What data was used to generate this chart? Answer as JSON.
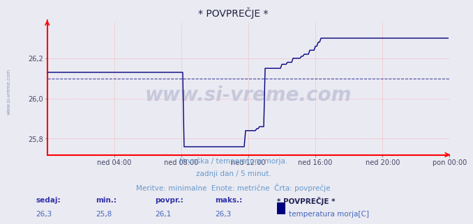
{
  "title": "* POVPREČJE *",
  "background_color": "#eaeaf2",
  "plot_bg_color": "#eaeaf2",
  "grid_color": "#ff9999",
  "line_color": "#00007f",
  "dashed_line_color": "#00007f",
  "axis_color": "#ff0000",
  "ylim": [
    25.72,
    26.38
  ],
  "yticks": [
    25.8,
    26.0,
    26.2
  ],
  "ytick_labels": [
    "25,8",
    "26,0",
    "26,2"
  ],
  "xlim": [
    0,
    288
  ],
  "xtick_positions": [
    48,
    96,
    144,
    192,
    240,
    288
  ],
  "xtick_labels": [
    "ned 04:00",
    "ned 08:00",
    "ned 12:00",
    "ned 16:00",
    "ned 20:00",
    "pon 00:00"
  ],
  "watermark": "www.si-vreme.com",
  "watermark_color": "#c8c8dc",
  "subtitle1": "Hrvaška / temperatura morja.",
  "subtitle2": "zadnji dan / 5 minut.",
  "subtitle3": "Meritve: minimalne  Enote: metrične  Črta: povprečje",
  "footer_label1": "sedaj:",
  "footer_label2": "min.:",
  "footer_label3": "povpr.:",
  "footer_label4": "maks.:",
  "footer_val1": "26,3",
  "footer_val2": "25,8",
  "footer_val3": "26,1",
  "footer_val4": "26,3",
  "footer_series_name": "* POVPREČJE *",
  "footer_series_label": "temperatura morja[C]",
  "legend_color": "#00007f",
  "dashed_y": 26.1,
  "left_text": "www.si-vreme.com",
  "text_color": "#6699cc",
  "label_color": "#3333aa",
  "val_color": "#4466bb"
}
